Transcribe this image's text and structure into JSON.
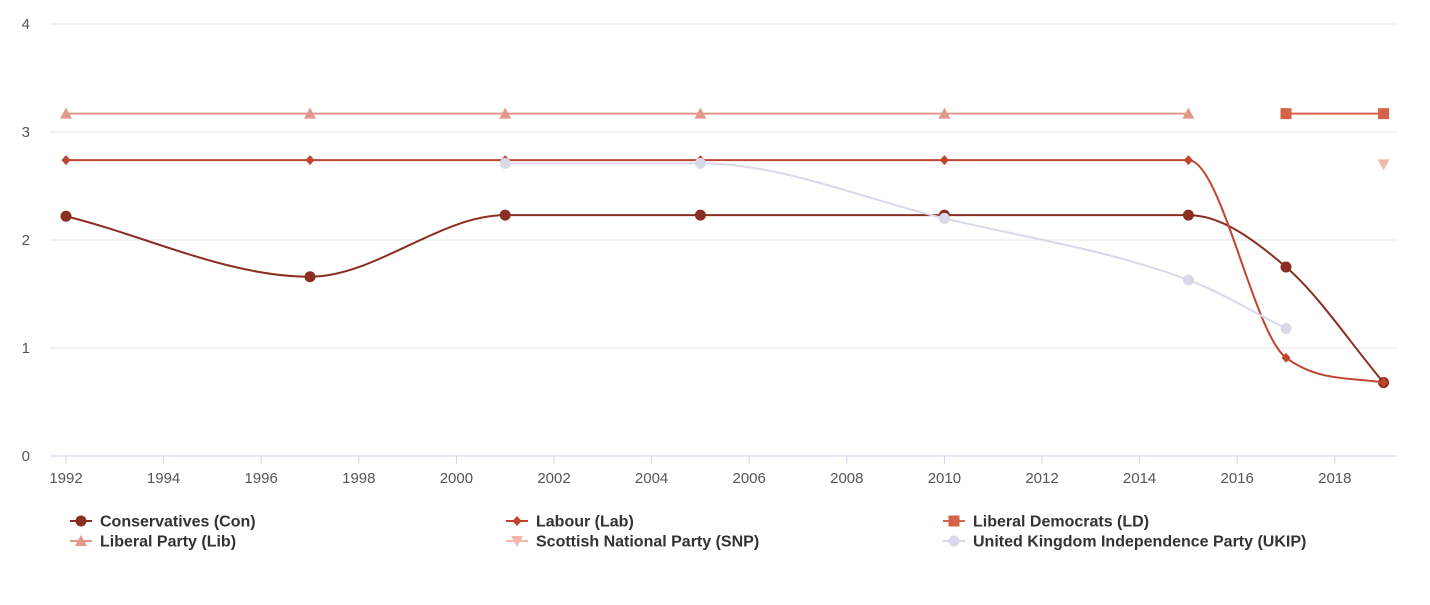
{
  "chart_data": {
    "type": "line",
    "title": "",
    "xlabel": "",
    "ylabel": "",
    "xlim": [
      1992,
      2019.3
    ],
    "ylim": [
      0,
      4
    ],
    "x_ticks": [
      1992,
      1994,
      1996,
      1998,
      2000,
      2002,
      2004,
      2006,
      2008,
      2010,
      2012,
      2014,
      2016,
      2018
    ],
    "y_ticks": [
      0,
      1,
      2,
      3,
      4
    ],
    "grid": "horizontal",
    "legend_position": "bottom",
    "series": [
      {
        "name": "Conservatives (Con)",
        "color": "#8b2e22",
        "marker": "circle",
        "points": [
          [
            1992,
            2.22
          ],
          [
            1997,
            1.66
          ],
          [
            2001,
            2.23
          ],
          [
            2005,
            2.23
          ],
          [
            2010,
            2.23
          ],
          [
            2015,
            2.23
          ],
          [
            2017,
            1.75
          ],
          [
            2019,
            0.68
          ]
        ]
      },
      {
        "name": "Labour (Lab)",
        "color": "#c0452f",
        "marker": "diamond",
        "points": [
          [
            1992,
            2.74
          ],
          [
            1997,
            2.74
          ],
          [
            2001,
            2.74
          ],
          [
            2005,
            2.74
          ],
          [
            2010,
            2.74
          ],
          [
            2015,
            2.74
          ],
          [
            2017,
            0.91
          ],
          [
            2019,
            0.68
          ]
        ]
      },
      {
        "name": "Liberal Democrats (LD)",
        "color": "#d7624a",
        "marker": "square",
        "points": [
          [
            2017,
            3.17
          ],
          [
            2019,
            3.17
          ]
        ]
      },
      {
        "name": "Liberal Party (Lib)",
        "color": "#e2988a",
        "marker": "triangle",
        "points": [
          [
            1992,
            3.17
          ],
          [
            1997,
            3.17
          ],
          [
            2001,
            3.17
          ],
          [
            2005,
            3.17
          ],
          [
            2010,
            3.17
          ],
          [
            2015,
            3.17
          ]
        ]
      },
      {
        "name": "Scottish National Party (SNP)",
        "color": "#f0b7ad",
        "marker": "triangle-down",
        "points": [
          [
            2019,
            2.7
          ]
        ]
      },
      {
        "name": "United Kingdom Independence Party (UKIP)",
        "color": "#d9d9ea",
        "marker": "circle",
        "points": [
          [
            2001,
            2.71
          ],
          [
            2005,
            2.71
          ],
          [
            2010,
            2.2
          ],
          [
            2015,
            1.63
          ],
          [
            2017,
            1.18
          ]
        ]
      }
    ]
  }
}
